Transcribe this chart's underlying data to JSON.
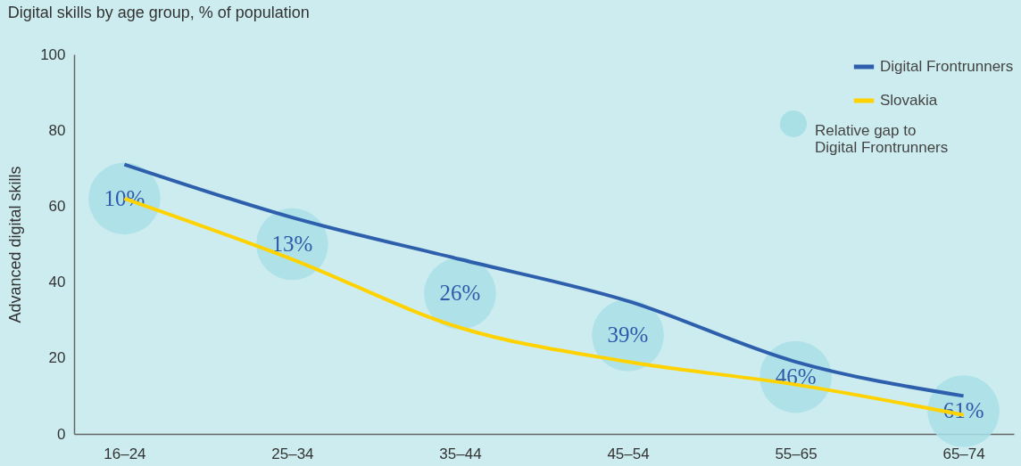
{
  "chart_data": {
    "type": "line",
    "title": "Digital skills by age group, % of population",
    "ylabel": "Advanced digital skills",
    "categories": [
      "16–24",
      "25–34",
      "35–44",
      "45–54",
      "55–65",
      "65–74"
    ],
    "ylim": [
      0,
      100
    ],
    "yticks": [
      0,
      20,
      40,
      60,
      80,
      100
    ],
    "legend": "top right",
    "series": [
      {
        "name": "Digital Frontrunners",
        "color": "#2e5fac",
        "values": [
          71,
          57,
          46,
          35,
          19,
          10
        ]
      },
      {
        "name": "Slovakia",
        "color": "#ffd200",
        "values": [
          62,
          46,
          28,
          19,
          13,
          5
        ]
      },
      {
        "name": "Relative gap to Digital Frontrunners",
        "type": "scatter",
        "marker": "circle",
        "color": "#a8e0e6",
        "values": [
          62,
          50,
          37,
          26,
          15,
          6
        ]
      }
    ],
    "annotations": [
      {
        "text": "10%",
        "x": "16–24",
        "y": 62
      },
      {
        "text": "13%",
        "x": "25–34",
        "y": 50
      },
      {
        "text": "26%",
        "x": "35–44",
        "y": 37
      },
      {
        "text": "39%",
        "x": "45–54",
        "y": 26
      },
      {
        "text": "46%",
        "x": "55–65",
        "y": 15
      },
      {
        "text": "61%",
        "x": "65–74",
        "y": 6
      }
    ]
  }
}
